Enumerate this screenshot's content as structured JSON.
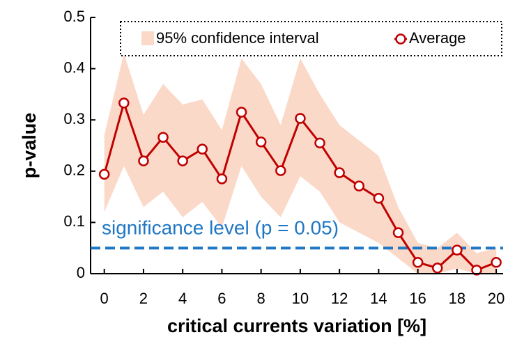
{
  "chart_data": {
    "type": "line",
    "xlabel": "critical currents variation [%]",
    "ylabel": "p-value",
    "x": [
      0,
      1,
      2,
      3,
      4,
      5,
      6,
      7,
      8,
      9,
      10,
      11,
      12,
      13,
      14,
      15,
      16,
      17,
      18,
      19,
      20
    ],
    "series": [
      {
        "name": "95% confidence interval",
        "color": "#fbd9c9",
        "upper": [
          0.27,
          0.43,
          0.31,
          0.37,
          0.33,
          0.34,
          0.28,
          0.42,
          0.37,
          0.29,
          0.42,
          0.35,
          0.29,
          0.26,
          0.23,
          0.13,
          0.06,
          0.05,
          0.08,
          0.04,
          0.05
        ],
        "lower": [
          0.12,
          0.21,
          0.13,
          0.16,
          0.11,
          0.14,
          0.09,
          0.21,
          0.15,
          0.11,
          0.19,
          0.16,
          0.1,
          0.08,
          0.06,
          0.03,
          0,
          0,
          0.01,
          0,
          0
        ]
      },
      {
        "name": "Average",
        "color": "#c00000",
        "values": [
          0.194,
          0.333,
          0.22,
          0.266,
          0.22,
          0.243,
          0.185,
          0.315,
          0.257,
          0.201,
          0.303,
          0.255,
          0.197,
          0.171,
          0.147,
          0.08,
          0.022,
          0.011,
          0.046,
          0.007,
          0.022
        ]
      }
    ],
    "threshold": {
      "value": 0.05,
      "label": "significance level (p = 0.05)",
      "color": "#1f77c4"
    },
    "xlim": [
      -0.7,
      20.35
    ],
    "ylim": [
      0,
      0.5
    ],
    "xticks": [
      0,
      2,
      4,
      6,
      8,
      10,
      12,
      14,
      16,
      18,
      20
    ],
    "yticks": [
      0,
      0.1,
      0.2,
      0.3,
      0.4,
      0.5
    ],
    "legend": "upper right"
  }
}
